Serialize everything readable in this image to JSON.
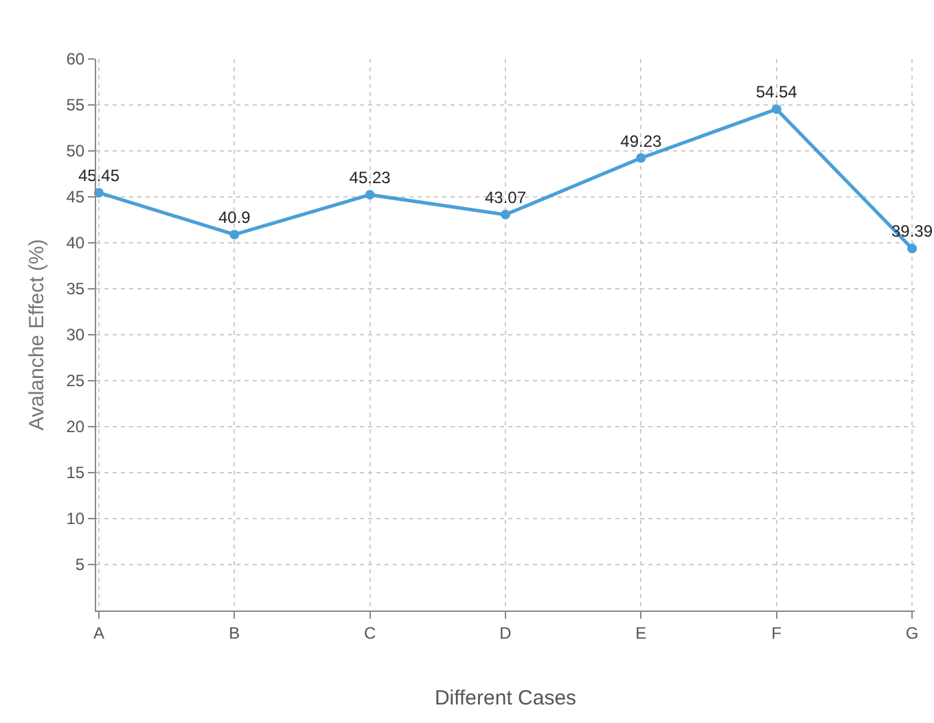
{
  "chart_data": {
    "type": "line",
    "xlabel": "Different Cases",
    "ylabel": "Avalanche Effect (%)",
    "categories": [
      "A",
      "B",
      "C",
      "D",
      "E",
      "F",
      "G"
    ],
    "series": [
      {
        "color": "#4a9fd8",
        "values": [
          45.45,
          40.9,
          45.23,
          43.07,
          49.23,
          54.54,
          39.39
        ]
      }
    ],
    "ylim": [
      0,
      60
    ],
    "yticks": [
      5,
      10,
      15,
      20,
      25,
      30,
      35,
      40,
      45,
      50,
      55,
      60
    ],
    "grid": true,
    "marker": "circle",
    "line_style": "solid",
    "data_labels": true,
    "legend": false
  }
}
